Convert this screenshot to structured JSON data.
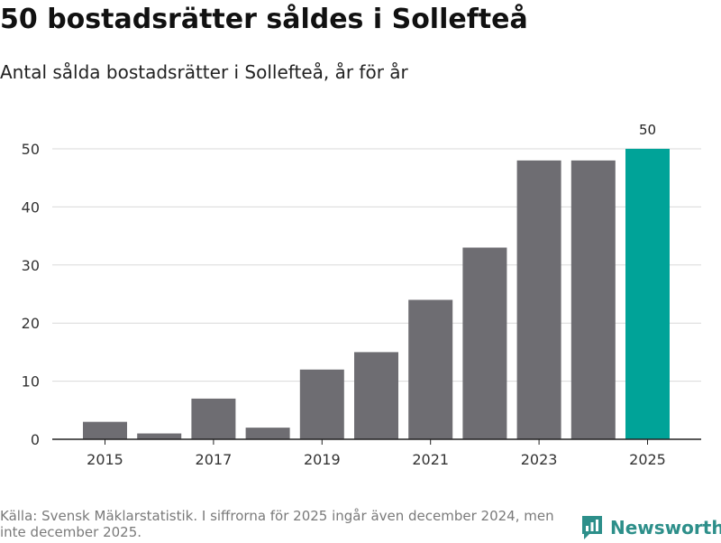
{
  "header": {
    "title": "50 bostadsrätter såldes i Sollefteå",
    "subtitle": "Antal sålda bostadsrätter i Sollefteå, år för år"
  },
  "chart_data": {
    "type": "bar",
    "title": "50 bostadsrätter såldes i Sollefteå",
    "subtitle": "Antal sålda bostadsrätter i Sollefteå, år för år",
    "xlabel": "",
    "ylabel": "",
    "categories": [
      "2015",
      "2016",
      "2017",
      "2018",
      "2019",
      "2020",
      "2021",
      "2022",
      "2023",
      "2024",
      "2025"
    ],
    "values": [
      3,
      1,
      7,
      2,
      12,
      15,
      24,
      33,
      48,
      48,
      50
    ],
    "x_tick_labels": [
      "2015",
      "2017",
      "2019",
      "2021",
      "2023",
      "2025"
    ],
    "y_ticks": [
      0,
      10,
      20,
      30,
      40,
      50
    ],
    "ylim": [
      0,
      50
    ],
    "grid": true,
    "highlight_index": 10,
    "highlight_label": "50",
    "colors": {
      "bar": "#6e6d72",
      "highlight": "#00a398",
      "grid": "#d9d9d9",
      "axis": "#222222"
    }
  },
  "footer": {
    "source": "Källa: Svensk Mäklarstatistik. I siffrorna för 2025 ingår även december 2024, men inte december 2025.",
    "brand": "Newsworthy",
    "brand_color": "#2d8f8a"
  }
}
